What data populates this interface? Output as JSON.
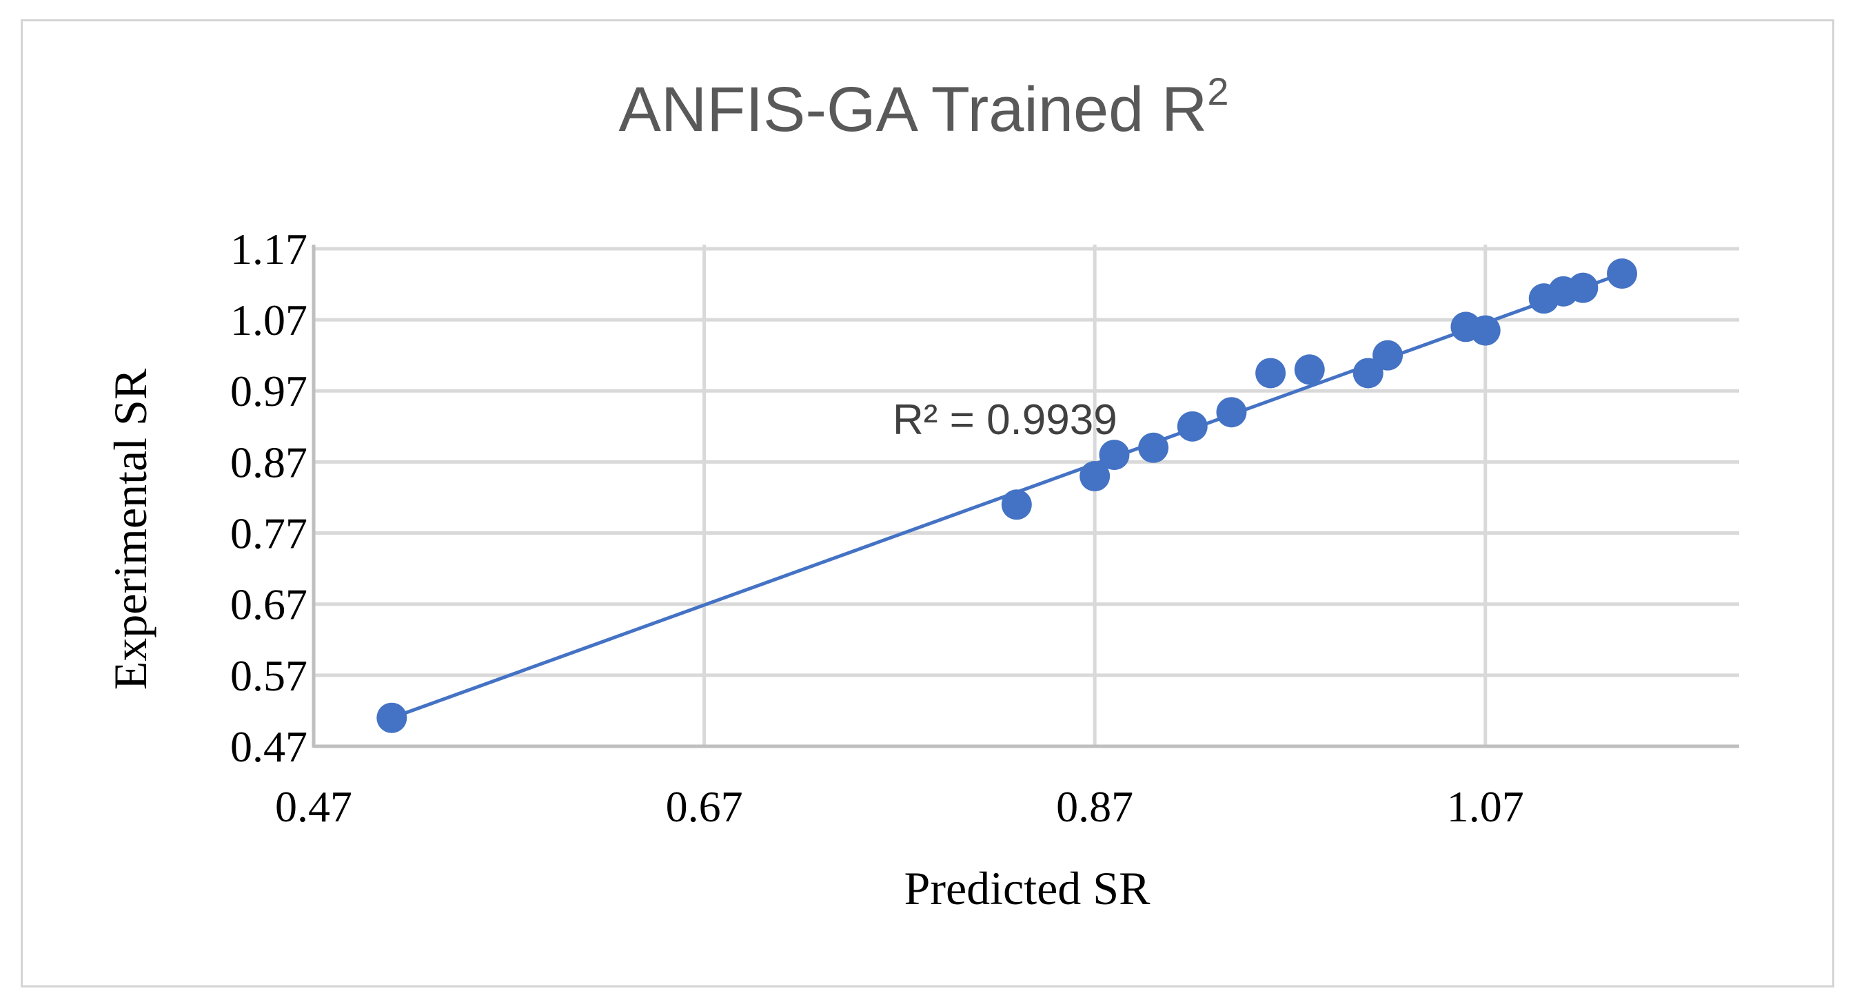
{
  "chart_data": {
    "type": "scatter",
    "title": "ANFIS-GA Trained R",
    "title_superscript": "2",
    "xlabel": "Predicted SR",
    "ylabel": "Experimental SR",
    "xlim": [
      0.47,
      1.2
    ],
    "ylim": [
      0.47,
      1.2
    ],
    "x_ticks": [
      0.47,
      0.67,
      0.87,
      1.07
    ],
    "x_tick_labels": [
      "0.47",
      "0.67",
      "0.87",
      "1.07"
    ],
    "y_ticks": [
      0.47,
      0.57,
      0.67,
      0.77,
      0.87,
      0.97,
      1.07,
      1.17
    ],
    "y_tick_labels": [
      "0.47",
      "0.57",
      "0.67",
      "0.77",
      "0.87",
      "0.97",
      "1.07",
      "1.17"
    ],
    "grid": true,
    "series": [
      {
        "name": "Experimental SR",
        "color": "#4472c4",
        "points": [
          {
            "x": 0.51,
            "y": 0.51
          },
          {
            "x": 0.83,
            "y": 0.81
          },
          {
            "x": 0.87,
            "y": 0.85
          },
          {
            "x": 0.88,
            "y": 0.88
          },
          {
            "x": 0.9,
            "y": 0.89
          },
          {
            "x": 0.92,
            "y": 0.92
          },
          {
            "x": 0.94,
            "y": 0.94
          },
          {
            "x": 0.96,
            "y": 0.995
          },
          {
            "x": 0.98,
            "y": 1.0
          },
          {
            "x": 1.01,
            "y": 0.995
          },
          {
            "x": 1.02,
            "y": 1.02
          },
          {
            "x": 1.06,
            "y": 1.06
          },
          {
            "x": 1.07,
            "y": 1.055
          },
          {
            "x": 1.1,
            "y": 1.1
          },
          {
            "x": 1.11,
            "y": 1.11
          },
          {
            "x": 1.12,
            "y": 1.115
          },
          {
            "x": 1.14,
            "y": 1.135
          }
        ]
      }
    ],
    "trendline": {
      "type": "linear",
      "color": "#4472c4",
      "x_range": [
        0.51,
        1.14
      ],
      "y_range": [
        0.51,
        1.135
      ]
    },
    "annotations": [
      {
        "text": "R² = 0.9939",
        "x": 0.82,
        "y": 0.92
      }
    ]
  }
}
